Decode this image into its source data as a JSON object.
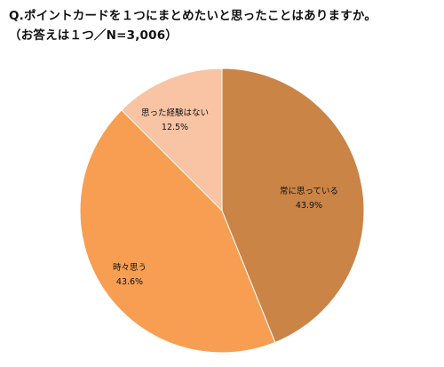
{
  "chart_data": {
    "type": "pie",
    "title": "Q.ポイントカードを１つにまとめたいと思ったことはありますか。",
    "subtitle": "（お答えは１つ／N=3,006）",
    "slices": [
      {
        "label": "常に思っている",
        "value": 43.9,
        "pct_text": "43.9%",
        "color": "#c98446"
      },
      {
        "label": "時々思う",
        "value": 43.6,
        "pct_text": "43.6%",
        "color": "#f79e52"
      },
      {
        "label": "思った経験はない",
        "value": 12.5,
        "pct_text": "12.5%",
        "color": "#f8c4a4"
      }
    ],
    "start": "12 o'clock",
    "direction": "clockwise",
    "legend": "none"
  }
}
